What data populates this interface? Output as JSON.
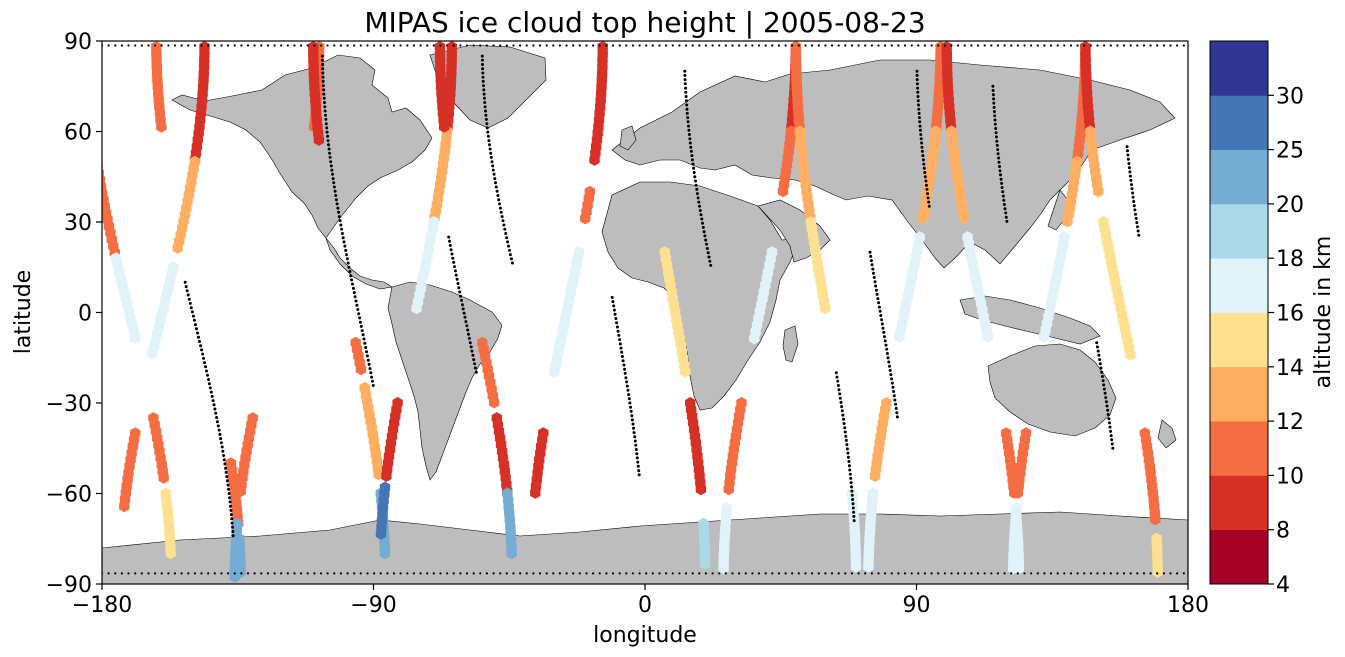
{
  "chart_data": {
    "type": "scatter",
    "title": "MIPAS ice cloud top height | 2005-08-23",
    "xlabel": "longitude",
    "ylabel": "latitude",
    "xlim": [
      -180,
      180
    ],
    "ylim": [
      -90,
      90
    ],
    "x_ticks": [
      -180,
      -90,
      0,
      90,
      180
    ],
    "x_tick_labels": [
      "−180",
      "−90",
      "0",
      "90",
      "180"
    ],
    "y_ticks": [
      -90,
      -60,
      -30,
      0,
      30,
      60,
      90
    ],
    "y_tick_labels": [
      "−90",
      "−60",
      "−30",
      "0",
      "30",
      "60",
      "90"
    ],
    "colorbar": {
      "label": "altitude in km",
      "boundaries": [
        4,
        8,
        10,
        12,
        14,
        16,
        18,
        20,
        25,
        30
      ],
      "tick_labels": [
        "4",
        "8",
        "10",
        "12",
        "14",
        "16",
        "18",
        "20",
        "25",
        "30"
      ],
      "colors": [
        "#a50026",
        "#d73027",
        "#f46d43",
        "#fdae61",
        "#fee090",
        "#e0f3f8",
        "#abd9e9",
        "#74add1",
        "#4575b4",
        "#313695"
      ]
    },
    "colors": {
      "land": "#bdbdbd",
      "track": "#000000"
    },
    "tracks": [
      {
        "lon0": -171,
        "ampl": 14,
        "offset": -1,
        "segments": [
          [
            88,
            18,
            11
          ],
          [
            18,
            -10,
            16
          ],
          [
            -35,
            -55,
            11
          ],
          [
            -60,
            -80,
            14
          ]
        ]
      },
      {
        "lon0": -160,
        "ampl": 14,
        "offset": 1,
        "segments": [
          [
            88,
            50,
            9
          ],
          [
            50,
            20,
            12
          ],
          [
            15,
            -15,
            16
          ],
          [
            -40,
            -65,
            10
          ]
        ]
      },
      {
        "lon0": -148,
        "ampl": 14,
        "offset": -1,
        "segments": [
          [
            88,
            60,
            11
          ],
          [
            -50,
            -72,
            10
          ],
          [
            -75,
            -88,
            22
          ]
        ]
      },
      {
        "lon0": -122,
        "ampl": 14,
        "offset": 1,
        "segments": [
          [
            88,
            60,
            10
          ],
          [
            -35,
            -60,
            10
          ],
          [
            -70,
            -88,
            22
          ]
        ]
      },
      {
        "lon0": -98,
        "ampl": 12,
        "offset": -1,
        "segments": [
          [
            88,
            55,
            9
          ],
          [
            -10,
            -20,
            11
          ],
          [
            -25,
            -55,
            13
          ],
          [
            -60,
            -80,
            22
          ]
        ]
      },
      {
        "lon0": -76,
        "ampl": 12,
        "offset": 1,
        "segments": [
          [
            88,
            60,
            9
          ],
          [
            60,
            30,
            12
          ],
          [
            30,
            0,
            16
          ],
          [
            -30,
            -55,
            9
          ],
          [
            -58,
            -75,
            27
          ]
        ]
      },
      {
        "lon0": -56,
        "ampl": 12,
        "offset": -1,
        "segments": [
          [
            88,
            60,
            8
          ],
          [
            -10,
            -30,
            11
          ],
          [
            -35,
            -60,
            9
          ],
          [
            -60,
            -80,
            22
          ]
        ]
      },
      {
        "lon0": -26,
        "ampl": 12,
        "offset": 1,
        "segments": [
          [
            88,
            50,
            9
          ],
          [
            40,
            30,
            11
          ],
          [
            20,
            -20,
            16
          ],
          [
            -40,
            -60,
            9
          ]
        ]
      },
      {
        "lon0": 10,
        "ampl": 10,
        "offset": -1,
        "segments": [
          [
            20,
            -20,
            14
          ],
          [
            -30,
            -60,
            9
          ],
          [
            -70,
            -85,
            18
          ]
        ]
      },
      {
        "lon0": 38,
        "ampl": 12,
        "offset": 1,
        "segments": [
          [
            88,
            60,
            9
          ],
          [
            60,
            40,
            11
          ],
          [
            20,
            -10,
            16
          ],
          [
            -30,
            -60,
            11
          ],
          [
            -65,
            -85,
            17
          ]
        ]
      },
      {
        "lon0": 60,
        "ampl": 10,
        "offset": -1,
        "segments": [
          [
            88,
            60,
            11
          ],
          [
            60,
            30,
            12
          ],
          [
            30,
            0,
            15
          ],
          [
            -60,
            -85,
            17
          ]
        ]
      },
      {
        "lon0": 86,
        "ampl": 12,
        "offset": 1,
        "segments": [
          [
            88,
            60,
            10
          ],
          [
            60,
            30,
            12
          ],
          [
            25,
            -10,
            16
          ],
          [
            -30,
            -55,
            12
          ],
          [
            -60,
            -85,
            16
          ]
        ]
      },
      {
        "lon0": 112,
        "ampl": 12,
        "offset": -1,
        "segments": [
          [
            88,
            60,
            9
          ],
          [
            60,
            30,
            13
          ],
          [
            25,
            -10,
            16
          ],
          [
            -40,
            -60,
            11
          ],
          [
            -65,
            -85,
            16
          ]
        ]
      },
      {
        "lon0": 134,
        "ampl": 12,
        "offset": 1,
        "segments": [
          [
            88,
            50,
            10
          ],
          [
            50,
            30,
            12
          ],
          [
            25,
            -10,
            16
          ],
          [
            -40,
            -60,
            11
          ],
          [
            -65,
            -85,
            16
          ]
        ]
      },
      {
        "lon0": 158,
        "ampl": 12,
        "offset": -1,
        "segments": [
          [
            88,
            60,
            9
          ],
          [
            60,
            40,
            12
          ],
          [
            30,
            -15,
            15
          ],
          [
            -40,
            -70,
            10
          ],
          [
            -75,
            -88,
            15
          ]
        ]
      }
    ],
    "orbit_dots": [
      {
        "lon0": -150,
        "ampl": 14,
        "from": 10,
        "to": -75
      },
      {
        "lon0": -95,
        "ampl": 12,
        "from": 85,
        "to": -25
      },
      {
        "lon0": -60,
        "ampl": 12,
        "from": 25,
        "to": -20
      },
      {
        "lon0": -40,
        "ampl": 14,
        "from": 85,
        "to": 15
      },
      {
        "lon0": 25,
        "ampl": 12,
        "from": 80,
        "to": 15
      },
      {
        "lon0": -10,
        "ampl": 10,
        "from": 5,
        "to": -55
      },
      {
        "lon0": 60,
        "ampl": 10,
        "from": -20,
        "to": -70
      },
      {
        "lon0": 78,
        "ampl": 10,
        "from": 20,
        "to": -35
      },
      {
        "lon0": 100,
        "ampl": 10,
        "from": 80,
        "to": 35
      },
      {
        "lon0": 125,
        "ampl": 10,
        "from": 75,
        "to": 30
      },
      {
        "lon0": 148,
        "ampl": 10,
        "from": -10,
        "to": -45
      },
      {
        "lon0": 168,
        "ampl": 10,
        "from": 55,
        "to": 25
      }
    ]
  }
}
